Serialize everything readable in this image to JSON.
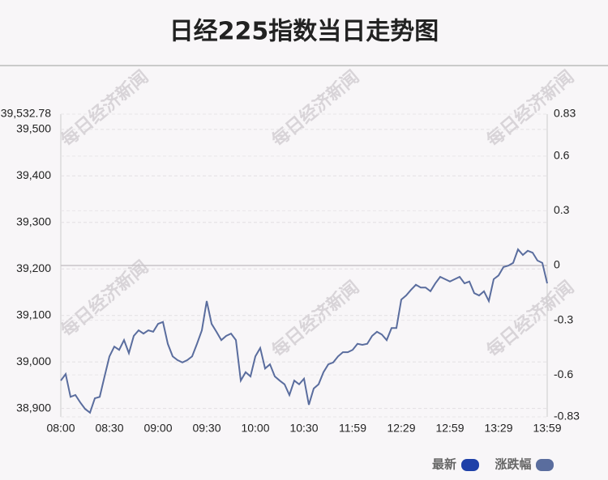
{
  "chart_data": {
    "type": "line",
    "title": "日经225指数当日走势图",
    "watermark": "每日经济新闻",
    "x": [
      0,
      1,
      2,
      3,
      4,
      5,
      6,
      7,
      8,
      9,
      10,
      11,
      12,
      13,
      14,
      15,
      16,
      17,
      18,
      19,
      20,
      21,
      22,
      23,
      24,
      25,
      26,
      27,
      28,
      29,
      30,
      31,
      32,
      33,
      34,
      35,
      36,
      37,
      38,
      39,
      40,
      41,
      42,
      43,
      44,
      45,
      46,
      47,
      48,
      49,
      50,
      51,
      52,
      53,
      54,
      55,
      56,
      57,
      58,
      59,
      60,
      61,
      62,
      63,
      64,
      65,
      66,
      67,
      68,
      69,
      70,
      71,
      72,
      73,
      74,
      75,
      76,
      77,
      78,
      79,
      80,
      81,
      82,
      83,
      84,
      85,
      86,
      87,
      88,
      89,
      90,
      91,
      92,
      93,
      94,
      95,
      96,
      97,
      98,
      99,
      100
    ],
    "series": [
      {
        "name": "最新",
        "color": "#5a6d9e",
        "values": [
          38960,
          38974,
          38925,
          38929,
          38913,
          38899,
          38891,
          38922,
          38925,
          38969,
          39012,
          39033,
          39026,
          39047,
          39019,
          39056,
          39068,
          39061,
          39068,
          39065,
          39082,
          39086,
          39039,
          39012,
          39004,
          38999,
          39004,
          39012,
          39039,
          39068,
          39131,
          39082,
          39065,
          39047,
          39056,
          39061,
          39047,
          38960,
          38978,
          38969,
          39012,
          39030,
          38986,
          38995,
          38969,
          38960,
          38952,
          38929,
          38960,
          38952,
          38964,
          38908,
          38943,
          38952,
          38978,
          38995,
          38999,
          39012,
          39021,
          39021,
          39026,
          39039,
          39037,
          39039,
          39056,
          39065,
          39059,
          39047,
          39073,
          39073,
          39134,
          39143,
          39155,
          39166,
          39160,
          39160,
          39152,
          39169,
          39183,
          39178,
          39173,
          39178,
          39183,
          39169,
          39173,
          39148,
          39143,
          39152,
          39131,
          39178,
          39186,
          39204,
          39207,
          39213,
          39242,
          39230,
          39239,
          39235,
          39218,
          39213,
          39169
        ]
      }
    ],
    "legend": [
      {
        "name": "最新",
        "color": "#1e40a8"
      },
      {
        "name": "涨跌幅",
        "color": "#5a6d9e"
      }
    ],
    "xlim": [
      0,
      100
    ],
    "xticks": [
      {
        "value": 0,
        "label": "08:00"
      },
      {
        "value": 10,
        "label": "08:30"
      },
      {
        "value": 20,
        "label": "09:00"
      },
      {
        "value": 30,
        "label": "09:30"
      },
      {
        "value": 40,
        "label": "10:00"
      },
      {
        "value": 50,
        "label": "10:30"
      },
      {
        "value": 60,
        "label": "11:59"
      },
      {
        "value": 70,
        "label": "12:29"
      },
      {
        "value": 80,
        "label": "12:59"
      },
      {
        "value": 90,
        "label": "13:29"
      },
      {
        "value": 100,
        "label": "13:59"
      }
    ],
    "ylim": [
      38882,
      39532.78
    ],
    "yticks": [
      {
        "value": 39532.78,
        "label": "39,532.78"
      },
      {
        "value": 39500,
        "label": "39,500"
      },
      {
        "value": 39400,
        "label": "39,400"
      },
      {
        "value": 39300,
        "label": "39,300"
      },
      {
        "value": 39200,
        "label": "39,200"
      },
      {
        "value": 39100,
        "label": "39,100"
      },
      {
        "value": 39000,
        "label": "39,000"
      },
      {
        "value": 38900,
        "label": "38,900"
      }
    ],
    "y2lim": [
      -0.83,
      0.83
    ],
    "y2ticks": [
      0.83,
      0.6,
      0.3,
      0,
      -0.3,
      -0.6,
      -0.83
    ],
    "grid": true
  }
}
